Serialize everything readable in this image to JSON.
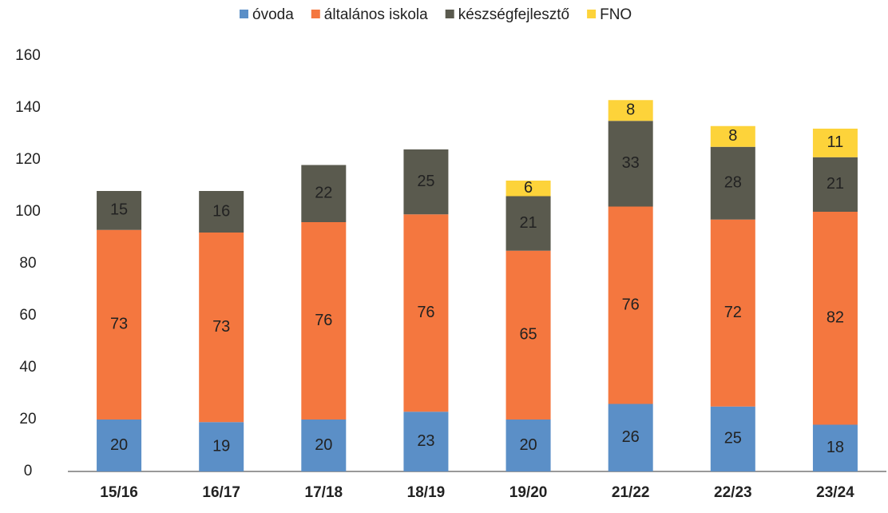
{
  "chart_data": {
    "type": "stacked_bar",
    "categories": [
      "15/16",
      "16/17",
      "17/18",
      "18/19",
      "19/20",
      "21/22",
      "22/23",
      "23/24"
    ],
    "series": [
      {
        "name": "óvoda",
        "color": "#5b8fc7",
        "values": [
          20,
          19,
          20,
          23,
          20,
          26,
          25,
          18
        ]
      },
      {
        "name": "általános iskola",
        "color": "#f4773f",
        "values": [
          73,
          73,
          76,
          76,
          65,
          76,
          72,
          82
        ]
      },
      {
        "name": "készségfejlesztő",
        "color": "#5a5a4e",
        "values": [
          15,
          16,
          22,
          25,
          21,
          33,
          28,
          21
        ]
      },
      {
        "name": "FNO",
        "color": "#fdd33a",
        "values": [
          null,
          null,
          null,
          null,
          6,
          8,
          8,
          11
        ]
      }
    ],
    "ylim": [
      0,
      160
    ],
    "yticks": [
      0,
      20,
      40,
      60,
      80,
      100,
      120,
      140,
      160
    ],
    "legend": "top"
  }
}
